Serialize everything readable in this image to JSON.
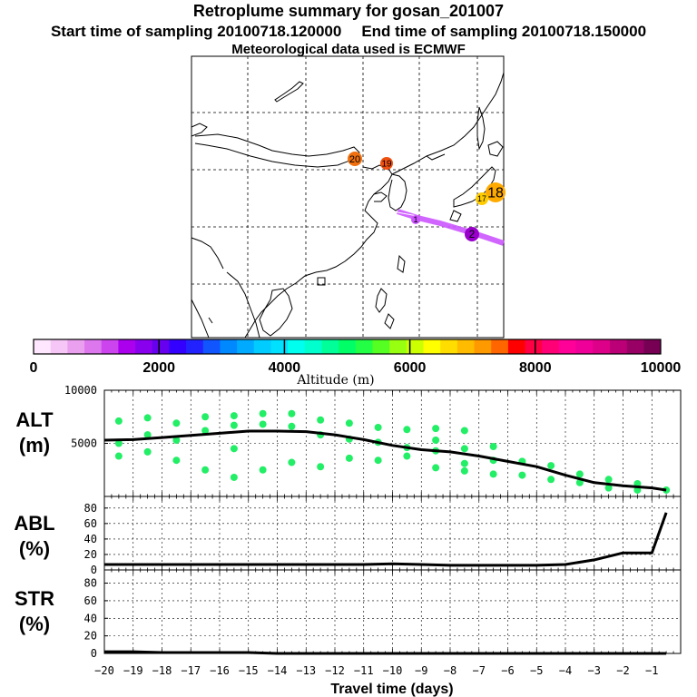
{
  "header": {
    "title": "Retroplume summary for gosan_201007",
    "start": "Start time of sampling 20100718.120000",
    "end": "End time of sampling 20100718.150000",
    "met": "Meteorological data used is ECMWF"
  },
  "map": {
    "day_markers": [
      {
        "label": "20",
        "color": "#f07010"
      },
      {
        "label": "19",
        "color": "#f05010"
      },
      {
        "label": "18",
        "color": "#ffaa00"
      },
      {
        "label": "17",
        "color": "#ffcc00"
      },
      {
        "label": "1",
        "color": "#cc55ff"
      },
      {
        "label": "2",
        "color": "#9900cc"
      }
    ],
    "plume_color": "#cc55ff"
  },
  "colorbar": {
    "tick_labels": [
      "0",
      "2000",
      "4000",
      "6000",
      "8000",
      "10000"
    ],
    "title": "Altitude (m)",
    "colors": [
      "#ffe8ff",
      "#f6c6f6",
      "#eaa0ee",
      "#dd77ee",
      "#cc44ee",
      "#aa00ee",
      "#8800ee",
      "#6600ee",
      "#3300ff",
      "#2222ff",
      "#1155ff",
      "#0088ff",
      "#00aaff",
      "#00ccff",
      "#00e0ff",
      "#00ffee",
      "#00ffcc",
      "#00ff99",
      "#00ff66",
      "#22ff44",
      "#55ff22",
      "#99ff11",
      "#ccff00",
      "#ffff00",
      "#ffdd00",
      "#ffbb00",
      "#ff9900",
      "#ff6600",
      "#ff0000",
      "#ff0044",
      "#ff0077",
      "#ff0099",
      "#ee0099",
      "#dd0088",
      "#bb0077",
      "#990066",
      "#770055"
    ]
  },
  "chart_data": [
    {
      "type": "line",
      "name": "ALT",
      "ylabel": "ALT (m)",
      "ylabel_lines": [
        "ALT",
        "(m)"
      ],
      "ylim": [
        0,
        10000
      ],
      "yticks": [
        5000,
        10000
      ],
      "xlim": [
        -20,
        0
      ],
      "x": [
        -20,
        -19,
        -18,
        -17,
        -16,
        -15,
        -14,
        -13,
        -12,
        -11,
        -10,
        -9,
        -8,
        -7,
        -6,
        -5,
        -4,
        -3,
        -2,
        -1,
        -0.5
      ],
      "mean": [
        5300,
        5350,
        5550,
        5750,
        5950,
        6150,
        6150,
        6100,
        5800,
        5350,
        4800,
        4400,
        4200,
        3800,
        3300,
        2800,
        2000,
        1300,
        1000,
        800,
        600
      ],
      "scatter": [
        {
          "x": -19.5,
          "y": 7100
        },
        {
          "x": -19.5,
          "y": 5000
        },
        {
          "x": -19.5,
          "y": 3800
        },
        {
          "x": -18.5,
          "y": 7400
        },
        {
          "x": -18.5,
          "y": 5800
        },
        {
          "x": -18.5,
          "y": 4200
        },
        {
          "x": -17.5,
          "y": 6900
        },
        {
          "x": -17.5,
          "y": 5300
        },
        {
          "x": -17.5,
          "y": 3400
        },
        {
          "x": -16.5,
          "y": 7500
        },
        {
          "x": -16.5,
          "y": 6200
        },
        {
          "x": -16.5,
          "y": 2500
        },
        {
          "x": -15.5,
          "y": 7600
        },
        {
          "x": -15.5,
          "y": 6700
        },
        {
          "x": -15.5,
          "y": 4500
        },
        {
          "x": -15.5,
          "y": 1800
        },
        {
          "x": -14.5,
          "y": 7800
        },
        {
          "x": -14.5,
          "y": 6800
        },
        {
          "x": -14.5,
          "y": 2500
        },
        {
          "x": -13.5,
          "y": 7800
        },
        {
          "x": -13.5,
          "y": 6600
        },
        {
          "x": -13.5,
          "y": 3200
        },
        {
          "x": -12.5,
          "y": 7200
        },
        {
          "x": -12.5,
          "y": 5800
        },
        {
          "x": -12.5,
          "y": 2800
        },
        {
          "x": -11.5,
          "y": 6900
        },
        {
          "x": -11.5,
          "y": 5400
        },
        {
          "x": -11.5,
          "y": 3600
        },
        {
          "x": -10.5,
          "y": 6500
        },
        {
          "x": -10.5,
          "y": 5100
        },
        {
          "x": -10.5,
          "y": 3400
        },
        {
          "x": -9.5,
          "y": 6300
        },
        {
          "x": -9.5,
          "y": 4600
        },
        {
          "x": -9.5,
          "y": 3800
        },
        {
          "x": -8.5,
          "y": 6400
        },
        {
          "x": -8.5,
          "y": 5300
        },
        {
          "x": -8.5,
          "y": 4300
        },
        {
          "x": -8.5,
          "y": 2700
        },
        {
          "x": -7.5,
          "y": 6200
        },
        {
          "x": -7.5,
          "y": 4500
        },
        {
          "x": -7.5,
          "y": 3100
        },
        {
          "x": -7.5,
          "y": 2400
        },
        {
          "x": -6.5,
          "y": 4700
        },
        {
          "x": -6.5,
          "y": 3400
        },
        {
          "x": -6.5,
          "y": 2100
        },
        {
          "x": -5.5,
          "y": 3300
        },
        {
          "x": -5.5,
          "y": 2000
        },
        {
          "x": -4.5,
          "y": 2900
        },
        {
          "x": -4.5,
          "y": 1600
        },
        {
          "x": -3.5,
          "y": 2100
        },
        {
          "x": -3.5,
          "y": 1300
        },
        {
          "x": -2.5,
          "y": 1600
        },
        {
          "x": -2.5,
          "y": 800
        },
        {
          "x": -1.5,
          "y": 1200
        },
        {
          "x": -1.5,
          "y": 600
        },
        {
          "x": -0.5,
          "y": 600
        }
      ]
    },
    {
      "type": "line",
      "name": "ABL",
      "ylabel": "ABL (%)",
      "ylabel_lines": [
        "ABL",
        "(%)"
      ],
      "ylim": [
        0,
        95
      ],
      "yticks": [
        0,
        20,
        40,
        60,
        80
      ],
      "xlim": [
        -20,
        0
      ],
      "x": [
        -20,
        -19,
        -18,
        -17,
        -16,
        -15,
        -14,
        -13,
        -12,
        -11,
        -10,
        -9,
        -8,
        -7,
        -6,
        -5,
        -4,
        -3,
        -2,
        -1,
        -0.5
      ],
      "values": [
        7,
        7,
        7,
        7,
        7,
        7,
        7,
        7,
        7,
        7,
        8,
        7,
        6,
        6,
        6,
        6,
        7,
        13,
        22,
        22,
        74
      ]
    },
    {
      "type": "line",
      "name": "STR",
      "ylabel": "STR (%)",
      "ylabel_lines": [
        "STR",
        "(%)"
      ],
      "ylim": [
        0,
        95
      ],
      "yticks": [
        0,
        20,
        40,
        60,
        80
      ],
      "xlim": [
        -20,
        0
      ],
      "x": [
        -20,
        -19,
        -18,
        -17,
        -16,
        -15,
        -14,
        -13,
        -12,
        -11,
        -10,
        -9,
        -8,
        -7,
        -6,
        -5,
        -4,
        -3,
        -2,
        -1,
        -0.5
      ],
      "values": [
        2,
        2,
        1,
        1,
        1,
        1,
        0,
        0,
        0,
        0,
        0,
        0,
        0,
        0,
        0,
        0,
        0,
        0,
        0,
        0,
        0
      ]
    }
  ],
  "xaxis": {
    "tick_labels": [
      "−20",
      "−19",
      "−18",
      "−17",
      "−16",
      "−15",
      "−14",
      "−13",
      "−12",
      "−11",
      "−10",
      "−9",
      "−8",
      "−7",
      "−6",
      "−5",
      "−4",
      "−3",
      "−2",
      "−1"
    ],
    "label": "Travel time (days)"
  }
}
